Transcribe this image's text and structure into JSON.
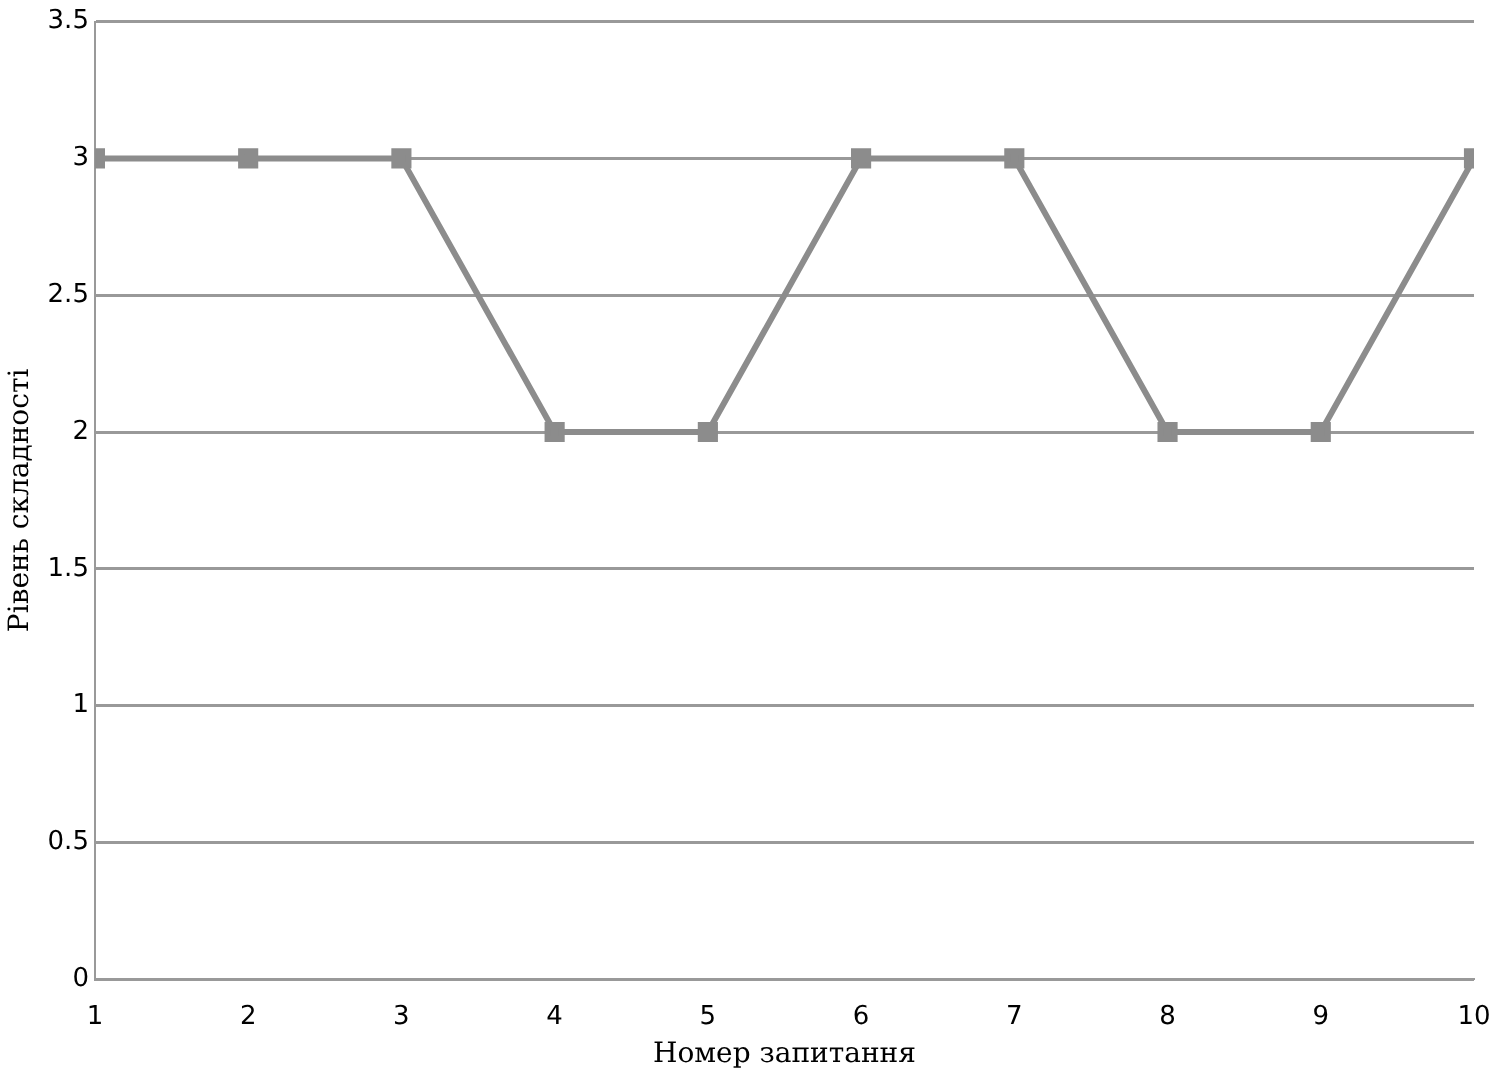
{
  "chart_data": {
    "type": "line",
    "xlabel": "Номер запитання",
    "ylabel": "Рівень складності",
    "x": [
      1,
      2,
      3,
      4,
      5,
      6,
      7,
      8,
      9,
      10
    ],
    "series": [
      {
        "color": "#8c8c8c",
        "values": [
          3,
          3,
          3,
          2,
          2,
          3,
          3,
          2,
          2,
          3
        ]
      }
    ],
    "xlim": [
      1,
      10
    ],
    "xticks": [
      1,
      2,
      3,
      4,
      5,
      6,
      7,
      8,
      9,
      10
    ],
    "ylim": [
      0,
      3.5
    ],
    "yticks": [
      0,
      0.5,
      1,
      1.5,
      2,
      2.5,
      3,
      3.5
    ],
    "grid": "y",
    "legend": false,
    "marker": "square",
    "line_style": "solid"
  }
}
